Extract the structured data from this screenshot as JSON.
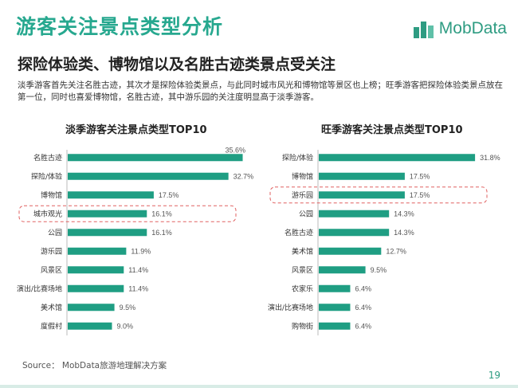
{
  "header": {
    "title": "游客关注景点类型分析",
    "logo_text": "MobData",
    "subtitle": "探险体验类、博物馆以及名胜古迹类景点受关注",
    "intro": "淡季游客首先关注名胜古迹，其次才是探险体验类景点，与此同时城市风光和博物馆等景区也上榜；旺季游客把探险体验类景点放在第一位，同时也喜爱博物馆，名胜古迹，其中游乐园的关注度明显高于淡季游客。"
  },
  "footer": {
    "source": "Source： MobData旅游地理解决方案",
    "page_number": "19"
  },
  "colors": {
    "accent": "#27a88f",
    "bar": "#1f9e83",
    "highlight_border": "#e06060"
  },
  "chart_data": [
    {
      "type": "bar",
      "orientation": "horizontal",
      "title": "淡季游客关注景点类型TOP10",
      "categories": [
        "名胜古迹",
        "探险/体验",
        "博物馆",
        "城市观光",
        "公园",
        "游乐园",
        "风景区",
        "演出/比赛场地",
        "美术馆",
        "度假村"
      ],
      "values": [
        35.6,
        32.7,
        17.5,
        16.1,
        16.1,
        11.9,
        11.4,
        11.4,
        9.5,
        9.0
      ],
      "value_labels": [
        "35.6%",
        "32.7%",
        "17.5%",
        "16.1%",
        "16.1%",
        "11.9%",
        "11.4%",
        "11.4%",
        "9.5%",
        "9.0%"
      ],
      "highlight_category": "城市观光",
      "xlim": [
        0,
        36
      ]
    },
    {
      "type": "bar",
      "orientation": "horizontal",
      "title": "旺季游客关注景点类型TOP10",
      "categories": [
        "探险/体验",
        "博物馆",
        "游乐园",
        "公园",
        "名胜古迹",
        "美术馆",
        "风景区",
        "农家乐",
        "演出/比赛场地",
        "购物街"
      ],
      "values": [
        31.8,
        17.5,
        17.5,
        14.3,
        14.3,
        12.7,
        9.5,
        6.4,
        6.4,
        6.4
      ],
      "value_labels": [
        "31.8%",
        "17.5%",
        "17.5%",
        "14.3%",
        "14.3%",
        "12.7%",
        "9.5%",
        "6.4%",
        "6.4%",
        "6.4%"
      ],
      "highlight_category": "游乐园",
      "xlim": [
        0,
        36
      ]
    }
  ]
}
